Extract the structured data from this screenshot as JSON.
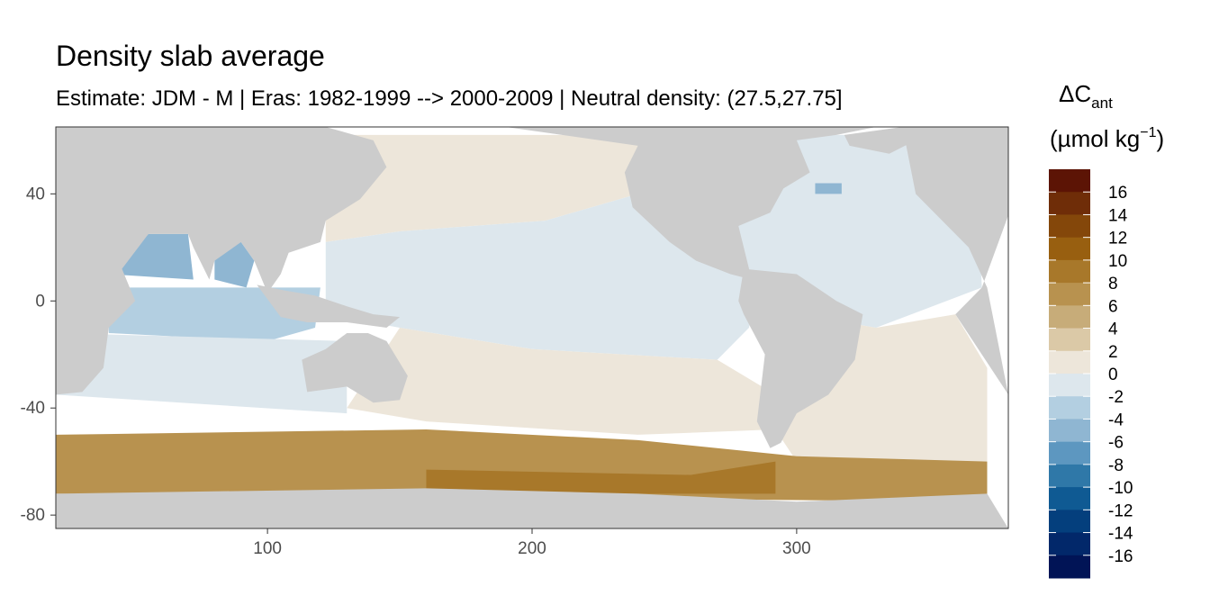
{
  "chart_data": {
    "type": "heatmap",
    "title": "Density slab average",
    "subtitle": "Estimate: JDM - M | Eras: 1982-1999 --> 2000-2009 | Neutral density: (27.5,27.75]",
    "xlabel": "",
    "ylabel": "",
    "xlim": [
      20,
      380
    ],
    "ylim": [
      -85,
      65
    ],
    "x_ticks": [
      "100",
      "200",
      "300"
    ],
    "x_tick_values": [
      100,
      200,
      300
    ],
    "y_ticks": [
      "40",
      "0",
      "-40",
      "-80"
    ],
    "y_tick_values": [
      40,
      0,
      -40,
      -80
    ],
    "grid": false,
    "land_color": "#cccccc",
    "legend": {
      "position": "right",
      "title_main": "ΔC",
      "title_sub": "ant",
      "unit_prefix": "(µmol kg",
      "unit_sup": "−1",
      "unit_suffix": ")",
      "labels": [
        "16",
        "14",
        "12",
        "10",
        "8",
        "6",
        "4",
        "2",
        "0",
        "-2",
        "-4",
        "-6",
        "-8",
        "-10",
        "-12",
        "-14",
        "-16"
      ],
      "colors": [
        "#5c1405",
        "#6f2d08",
        "#84470a",
        "#985f10",
        "#a8782a",
        "#b8924f",
        "#c7ac79",
        "#dbc9a7",
        "#ede6da",
        "#dde7ed",
        "#b3cfe1",
        "#8fb6d2",
        "#5d97c0",
        "#2f78a8",
        "#0f5a93",
        "#043f7d",
        "#02286a",
        "#011456"
      ]
    },
    "regions": [
      {
        "name": "north-pacific",
        "value": 1
      },
      {
        "name": "equatorial-pacific",
        "value": -1
      },
      {
        "name": "south-pacific",
        "value": 1
      },
      {
        "name": "north-atlantic",
        "value": -1
      },
      {
        "name": "labrador-sea",
        "value": -5
      },
      {
        "name": "south-atlantic",
        "value": 1
      },
      {
        "name": "arabian-sea",
        "value": -5
      },
      {
        "name": "bay-of-bengal",
        "value": -5
      },
      {
        "name": "tropical-indian",
        "value": -3
      },
      {
        "name": "south-indian",
        "value": -1
      },
      {
        "name": "southern-ocean",
        "value": 7
      },
      {
        "name": "weddell-ross-margin",
        "value": 9
      }
    ]
  }
}
